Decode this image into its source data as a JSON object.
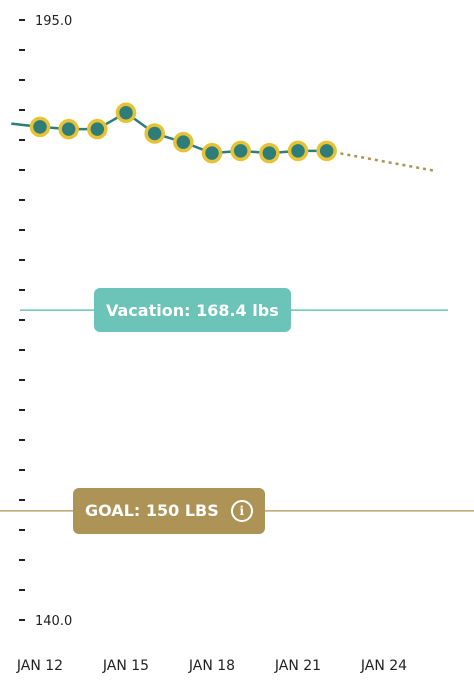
{
  "chart_data": {
    "type": "line",
    "ylim": [
      140.0,
      195.0
    ],
    "y_tick_labels": [
      "195.0",
      "140.0"
    ],
    "x_tick_labels": [
      "JAN 12",
      "JAN 15",
      "JAN 18",
      "JAN 21",
      "JAN 24"
    ],
    "x_tick_days": [
      12,
      15,
      18,
      21,
      24
    ],
    "series": [
      {
        "x": [
          11,
          12,
          13,
          14,
          15,
          16,
          17,
          18,
          19,
          20,
          21,
          22
        ],
        "values": [
          185.5,
          185.2,
          185.0,
          185.0,
          186.5,
          184.6,
          183.8,
          182.8,
          183.0,
          182.8,
          183.0,
          183.0
        ]
      }
    ],
    "trend_projection": {
      "x": [
        22,
        26
      ],
      "values": [
        183.0,
        181.2
      ]
    },
    "reference_lines": [
      {
        "label": "Vacation: 168.4 lbs",
        "value": 168.4,
        "color": "#6cc3b8"
      },
      {
        "label": "GOAL: 150 LBS",
        "value": 150.0,
        "color": "#ad9355"
      }
    ],
    "colors": {
      "line": "#2e7d78",
      "marker_fill": "#2e7d78",
      "marker_ring": "#e8c235",
      "projection": "#ad9355",
      "vacation": "#6cc3b8",
      "goal": "#ad9355"
    },
    "grid": false,
    "info_icon": "info-icon"
  }
}
